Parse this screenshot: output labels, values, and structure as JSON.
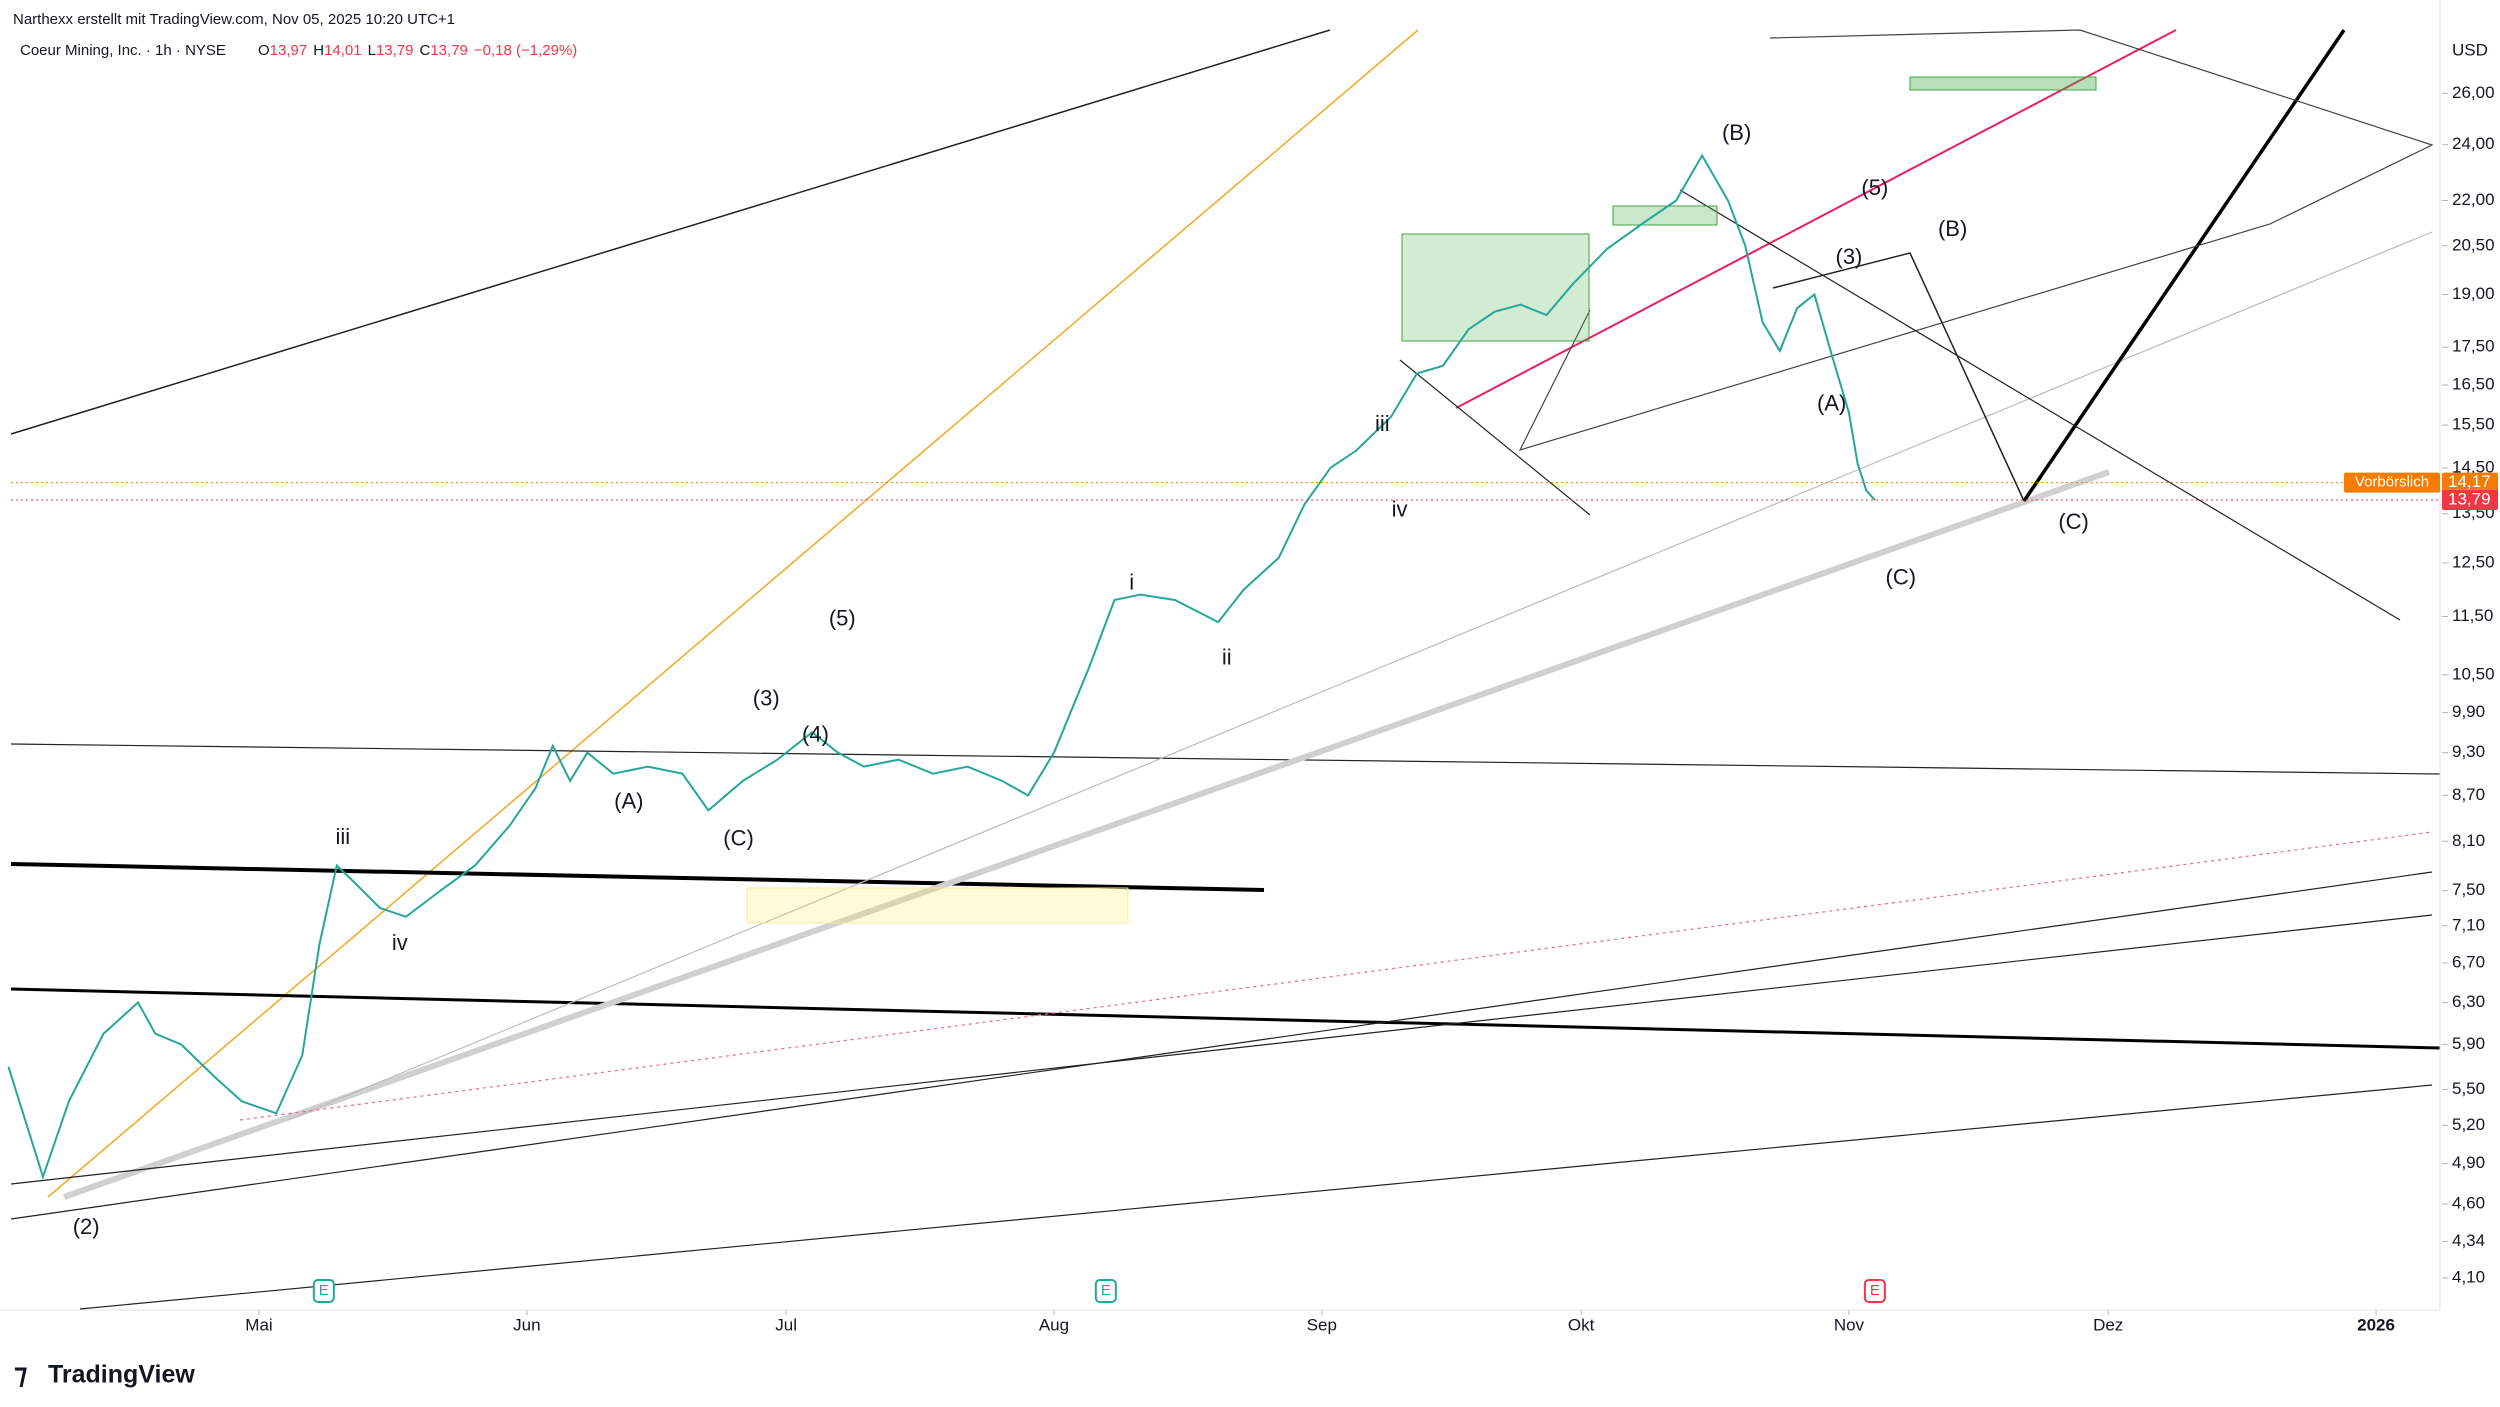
{
  "header": {
    "credit": "Narthexx erstellt mit TradingView.com, Nov 05, 2025 10:20 UTC+1",
    "symbol": "Coeur Mining, Inc. · 1h · NYSE",
    "ohlc": [
      {
        "key": "O",
        "value": "13,97"
      },
      {
        "key": "H",
        "value": "14,01"
      },
      {
        "key": "L",
        "value": "13,79"
      },
      {
        "key": "C",
        "value": "13,79"
      }
    ],
    "change": "−0,18 (−1,29%)",
    "logo": "TradingView"
  },
  "chart_data": {
    "type": "line",
    "log_scale": true,
    "grid": false,
    "color": "#26a69a",
    "y_unit": "USD",
    "x": [
      -29,
      -25,
      -22,
      -18,
      -14,
      -12,
      -9,
      -5,
      -2,
      2,
      5,
      7,
      9,
      11,
      14,
      17,
      21,
      25,
      29,
      32,
      34,
      36,
      38,
      41,
      45,
      49,
      52,
      56,
      60,
      64,
      67,
      70,
      74,
      78,
      82,
      86,
      89,
      92,
      96,
      99,
      102,
      106,
      111,
      114,
      118,
      121,
      124,
      127,
      131,
      134,
      137,
      140,
      143,
      146,
      149,
      152,
      156,
      160,
      164,
      167,
      170,
      172,
      174,
      176,
      178,
      180,
      182,
      184,
      185,
      186,
      187
    ],
    "values": [
      5.7,
      4.8,
      5.4,
      6.0,
      6.3,
      6.0,
      5.9,
      5.6,
      5.4,
      5.3,
      5.8,
      6.9,
      7.8,
      7.6,
      7.3,
      7.2,
      7.5,
      7.8,
      8.3,
      8.8,
      9.4,
      8.9,
      9.3,
      9.0,
      9.1,
      9.0,
      8.5,
      8.9,
      9.2,
      9.6,
      9.3,
      9.1,
      9.2,
      9.0,
      9.1,
      8.9,
      8.7,
      9.3,
      10.6,
      11.8,
      11.9,
      11.8,
      11.4,
      12.0,
      12.6,
      13.7,
      14.5,
      14.9,
      15.7,
      16.8,
      17.0,
      18.0,
      18.5,
      18.7,
      18.4,
      19.3,
      20.4,
      21.2,
      22.0,
      23.6,
      22.0,
      20.5,
      18.2,
      17.4,
      18.6,
      19.0,
      17.3,
      15.8,
      14.6,
      14.0,
      13.79
    ],
    "xlim": [
      -28.7,
      252.4
    ],
    "xticks": [
      {
        "value": 0,
        "label": "Mai"
      },
      {
        "value": 31,
        "label": "Jun"
      },
      {
        "value": 61,
        "label": "Jul"
      },
      {
        "value": 92,
        "label": "Aug"
      },
      {
        "value": 123,
        "label": "Sep"
      },
      {
        "value": 153,
        "label": "Okt"
      },
      {
        "value": 184,
        "label": "Nov"
      },
      {
        "value": 214,
        "label": "Dez"
      },
      {
        "value": 245,
        "label": "2026"
      }
    ],
    "ylim": [
      3.9,
      28.7
    ],
    "yticks": [
      {
        "value": 26,
        "label": "26,00"
      },
      {
        "value": 24,
        "label": "24,00"
      },
      {
        "value": 22,
        "label": "22,00"
      },
      {
        "value": 20.5,
        "label": "20,50"
      },
      {
        "value": 19,
        "label": "19,00"
      },
      {
        "value": 17.5,
        "label": "17,50"
      },
      {
        "value": 16.5,
        "label": "16,50"
      },
      {
        "value": 15.5,
        "label": "15,50"
      },
      {
        "value": 14.5,
        "label": "14,50"
      },
      {
        "value": 13.5,
        "label": "13,50"
      },
      {
        "value": 12.5,
        "label": "12,50"
      },
      {
        "value": 11.5,
        "label": "11,50"
      },
      {
        "value": 10.5,
        "label": "10,50"
      },
      {
        "value": 9.9,
        "label": "9,90"
      },
      {
        "value": 9.3,
        "label": "9,30"
      },
      {
        "value": 8.7,
        "label": "8,70"
      },
      {
        "value": 8.1,
        "label": "8,10"
      },
      {
        "value": 7.5,
        "label": "7,50"
      },
      {
        "value": 7.1,
        "label": "7,10"
      },
      {
        "value": 6.7,
        "label": "6,70"
      },
      {
        "value": 6.3,
        "label": "6,30"
      },
      {
        "value": 5.9,
        "label": "5,90"
      },
      {
        "value": 5.5,
        "label": "5,50"
      },
      {
        "value": 5.2,
        "label": "5,20"
      },
      {
        "value": 4.9,
        "label": "4,90"
      },
      {
        "value": 4.6,
        "label": "4,60"
      },
      {
        "value": 4.34,
        "label": "4,34"
      },
      {
        "value": 4.1,
        "label": "4,10"
      }
    ],
    "price_labels": [
      {
        "name": "Vorbörslich",
        "value": 14.17,
        "label": "14,17",
        "color": "#f57c00"
      },
      {
        "value": 13.79,
        "label": "13,79",
        "color": "#f23645"
      }
    ],
    "events": [
      {
        "label": "E",
        "x": 7.5,
        "color": "#26a69a"
      },
      {
        "label": "E",
        "x": 98,
        "color": "#26a69a"
      },
      {
        "label": "E",
        "x": 187,
        "color": "#f23645"
      }
    ],
    "annotations": [
      {
        "text": "(2)",
        "x": -20,
        "y": 4.43
      },
      {
        "text": "iii",
        "x": 9.7,
        "y": 8.14
      },
      {
        "text": "iv",
        "x": 16.3,
        "y": 6.9
      },
      {
        "text": "(A)",
        "x": 42.8,
        "y": 8.6
      },
      {
        "text": "(C)",
        "x": 55.5,
        "y": 8.12
      },
      {
        "text": "(3)",
        "x": 58.7,
        "y": 10.1
      },
      {
        "text": "(4)",
        "x": 64.4,
        "y": 9.55
      },
      {
        "text": "(5)",
        "x": 67.5,
        "y": 11.44
      },
      {
        "text": "i",
        "x": 101,
        "y": 12.1
      },
      {
        "text": "ii",
        "x": 112,
        "y": 10.77
      },
      {
        "text": "iii",
        "x": 130,
        "y": 15.5
      },
      {
        "text": "iv",
        "x": 132,
        "y": 13.56
      },
      {
        "text": "(B)",
        "x": 171,
        "y": 24.4
      },
      {
        "text": "(A)",
        "x": 182,
        "y": 16.0
      },
      {
        "text": "(3)",
        "x": 184,
        "y": 20.1
      },
      {
        "text": "(5)",
        "x": 187,
        "y": 22.4
      },
      {
        "text": "(C)",
        "x": 190,
        "y": 12.2
      },
      {
        "text": "(B)",
        "x": 196,
        "y": 21.0
      },
      {
        "text": "(C)",
        "x": 210,
        "y": 13.3
      }
    ]
  }
}
